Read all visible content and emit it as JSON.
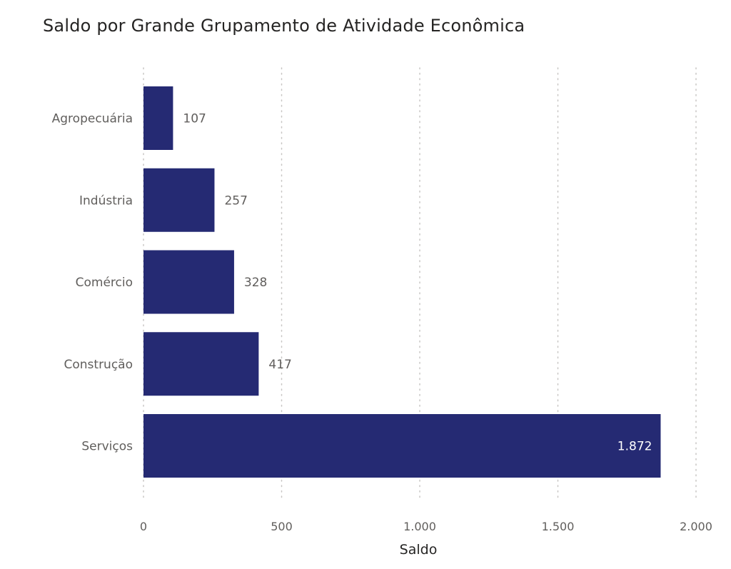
{
  "chart_data": {
    "type": "bar",
    "orientation": "horizontal",
    "title": "Saldo por Grande Grupamento de Atividade Econômica",
    "xlabel": "Saldo",
    "ylabel": "",
    "categories": [
      "Agropecuária",
      "Indústria",
      "Comércio",
      "Construção",
      "Serviços"
    ],
    "values": [
      107,
      257,
      328,
      417,
      1872
    ],
    "data_labels": [
      "107",
      "257",
      "328",
      "417",
      "1.872"
    ],
    "xlim": [
      0,
      2000
    ],
    "x_ticks": [
      0,
      500,
      1000,
      1500,
      2000
    ],
    "x_tick_labels": [
      "0",
      "500",
      "1.000",
      "1.500",
      "2.000"
    ],
    "grid": true,
    "legend": "none",
    "colors": {
      "bar": "#252a73",
      "label_outside": "#605e5c",
      "label_inside": "#ffffff",
      "grid": "#c8c6c4"
    }
  }
}
